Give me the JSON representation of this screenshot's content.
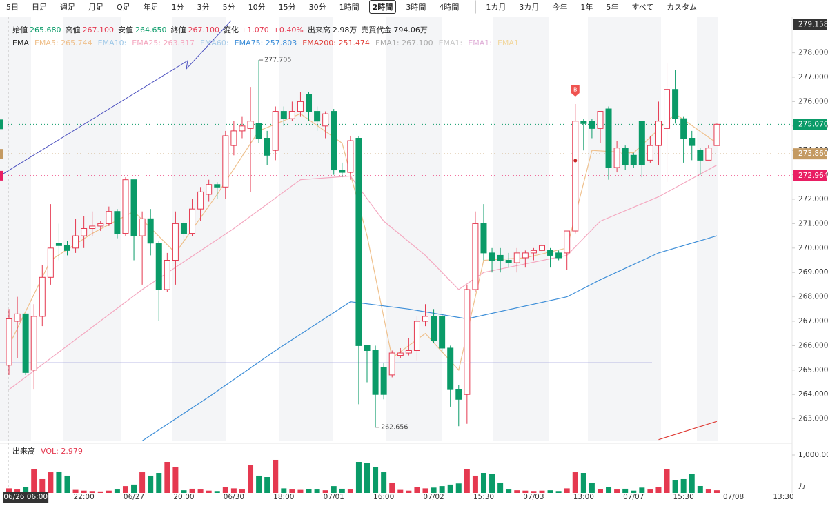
{
  "toolbar": [
    "5日",
    "日足",
    "週足",
    "月足",
    "Q足",
    "年足",
    "1分",
    "3分",
    "5分",
    "10分",
    "15分",
    "30分",
    "1時間",
    "2時間",
    "3時間",
    "4時間",
    "1カ月",
    "3カ月",
    "今年",
    "1年",
    "5年",
    "すべて",
    "カスタム"
  ],
  "toolbar_selected": "2時間",
  "ohlc_info": [
    {
      "label": "始値",
      "value": "265.680",
      "color": "#0a9b68"
    },
    {
      "label": "高値",
      "value": "267.100",
      "color": "#e53950"
    },
    {
      "label": "安値",
      "value": "264.650",
      "color": "#0a9b68"
    },
    {
      "label": "終値",
      "value": "267.100",
      "color": "#e53950"
    },
    {
      "label": "変化",
      "value": "+1.070",
      "color": "#e53950"
    },
    {
      "label": "",
      "value": "+0.40%",
      "color": "#e53950"
    },
    {
      "label": "出来高",
      "value": "2.98万",
      "color": "#222"
    },
    {
      "label": "売買代金",
      "value": "794.06万",
      "color": "#222"
    }
  ],
  "chart_data": {
    "type": "candlestick",
    "ema_title": "EMA",
    "ema": [
      {
        "text": "EMA5: 265.744",
        "color": "#efc08c",
        "x": [
          0,
          5,
          10,
          15,
          20,
          25,
          30,
          35,
          40,
          43,
          46,
          50,
          54,
          57,
          62,
          67,
          70,
          75,
          80,
          85
        ],
        "values": [
          266,
          269.5,
          270.6,
          271.5,
          269.8,
          272.2,
          274.8,
          275.5,
          274.3,
          270.5,
          265.5,
          266.5,
          265,
          269.5,
          269.6,
          270,
          274,
          273.9,
          275.5,
          274.3
        ]
      },
      {
        "text": "EMA10:",
        "color": "#9ec8e8"
      },
      {
        "text": "EMA25: 263.317",
        "color": "#f4a8c0",
        "x": [
          0,
          16,
          27,
          35,
          41,
          45,
          50,
          54,
          57,
          67,
          71,
          78,
          85
        ],
        "values": [
          264.2,
          268.3,
          270.8,
          272.8,
          272.95,
          271.1,
          269.7,
          268.3,
          269,
          269.7,
          271.1,
          272.1,
          273.4
        ]
      },
      {
        "text": "EMA60:",
        "color": "#a8cce8"
      },
      {
        "text": "EMA75: 257.803",
        "color": "#3d8ed8",
        "x": [
          16,
          24,
          32,
          41,
          48,
          55,
          67,
          71,
          78,
          85
        ],
        "values": [
          262.1,
          263.9,
          265.8,
          267.8,
          267.5,
          267.1,
          268,
          268.7,
          269.8,
          270.5
        ]
      },
      {
        "text": "EMA200: 251.474",
        "color": "#e0403a",
        "x": [
          78,
          85
        ],
        "values": [
          262.15,
          262.9
        ]
      },
      {
        "text": "EMA1: 267.100",
        "color": "#aaaaaa"
      },
      {
        "text": "EMA1:",
        "color": "#c8c8c8"
      },
      {
        "text": "EMA1:",
        "color": "#e0b0d8"
      },
      {
        "text": "EMA1",
        "color": "#f2d8a0"
      }
    ],
    "up_color": "#e53950",
    "down_color": "#0a9b68",
    "categories": [
      null,
      null,
      "06/26 06:00",
      null,
      null,
      null,
      null,
      null,
      null,
      "22:00",
      null,
      null,
      null,
      null,
      null,
      "06/27",
      null,
      null,
      null,
      null,
      null,
      "20:00",
      null,
      null,
      null,
      null,
      null,
      "06/30",
      null,
      null,
      null,
      null,
      null,
      "18:00",
      null,
      null,
      null,
      null,
      null,
      "07/01",
      null,
      null,
      null,
      null,
      null,
      "16:00",
      null,
      null,
      null,
      null,
      null,
      "07/02",
      null,
      null,
      null,
      null,
      null,
      "15:30",
      null,
      null,
      null,
      null,
      null,
      "07/03",
      null,
      null,
      null,
      null,
      null,
      "13:00",
      null,
      null,
      null,
      null,
      null,
      "07/07",
      null,
      null,
      null,
      null,
      null,
      "15:30",
      null,
      null,
      null,
      null,
      null,
      "07/08",
      null,
      null,
      null,
      null,
      null,
      "13:30"
    ],
    "ohlc": [
      [
        265.2,
        267.5,
        264.8,
        267.1
      ],
      [
        267.0,
        268.0,
        265.5,
        267.3
      ],
      [
        267.3,
        267.3,
        264.8,
        264.9
      ],
      [
        265.0,
        267.7,
        264.2,
        267.2
      ],
      [
        267.2,
        269.3,
        266.8,
        268.8
      ],
      [
        268.8,
        271.8,
        268.5,
        270.0
      ],
      [
        270.2,
        271.0,
        269.5,
        270.1
      ],
      [
        270.1,
        270.3,
        269.7,
        269.9
      ],
      [
        270.0,
        271.2,
        269.8,
        270.5
      ],
      [
        270.5,
        271.3,
        270.0,
        270.8
      ],
      [
        270.8,
        271.5,
        270.5,
        270.9
      ],
      [
        270.9,
        271.1,
        270.7,
        271.0
      ],
      [
        271.0,
        271.7,
        270.9,
        271.5
      ],
      [
        271.5,
        271.6,
        270.4,
        270.6
      ],
      [
        270.6,
        272.9,
        270.5,
        272.8
      ],
      [
        272.8,
        272.8,
        269.5,
        270.5
      ],
      [
        270.5,
        271.5,
        268.5,
        271.2
      ],
      [
        271.2,
        271.6,
        269.7,
        270.2
      ],
      [
        270.2,
        270.3,
        267.0,
        268.3
      ],
      [
        268.3,
        269.8,
        268.2,
        269.5
      ],
      [
        269.5,
        271.5,
        268.5,
        271.0
      ],
      [
        271.0,
        271.1,
        270.2,
        270.6
      ],
      [
        270.6,
        272.0,
        270.5,
        271.6
      ],
      [
        271.6,
        272.5,
        271.1,
        272.3
      ],
      [
        272.2,
        272.8,
        271.9,
        272.6
      ],
      [
        272.6,
        272.7,
        272.0,
        272.5
      ],
      [
        272.5,
        274.8,
        272.0,
        274.6
      ],
      [
        274.2,
        275.2,
        273.8,
        274.8
      ],
      [
        274.8,
        275.4,
        274.5,
        275.0
      ],
      [
        274.9,
        276.6,
        272.3,
        275.2
      ],
      [
        275.1,
        277.705,
        274.3,
        274.5
      ],
      [
        274.5,
        274.8,
        273.4,
        273.8
      ],
      [
        274.0,
        275.8,
        273.6,
        275.6
      ],
      [
        275.6,
        275.8,
        275.0,
        275.3
      ],
      [
        275.3,
        276.0,
        275.2,
        275.6
      ],
      [
        275.6,
        276.4,
        275.4,
        276.0
      ],
      [
        276.3,
        276.4,
        275.2,
        275.6
      ],
      [
        275.6,
        275.8,
        274.8,
        275.2
      ],
      [
        275.0,
        275.6,
        274.5,
        275.5
      ],
      [
        275.6,
        275.7,
        273.0,
        273.2
      ],
      [
        273.2,
        273.5,
        272.9,
        273.1
      ],
      [
        273.1,
        274.6,
        272.8,
        274.4
      ],
      [
        274.5,
        274.6,
        263.6,
        266.0
      ],
      [
        266.0,
        266.0,
        264.5,
        265.8
      ],
      [
        265.8,
        266.0,
        262.656,
        264.0
      ],
      [
        265.1,
        265.3,
        263.8,
        264.0
      ],
      [
        264.8,
        265.8,
        264.7,
        265.7
      ],
      [
        265.6,
        265.9,
        265.5,
        265.7
      ],
      [
        265.7,
        266.3,
        265.6,
        265.8
      ],
      [
        265.8,
        267.2,
        265.4,
        267.0
      ],
      [
        267.0,
        267.7,
        266.8,
        267.2
      ],
      [
        267.2,
        267.5,
        266.1,
        266.2
      ],
      [
        267.2,
        267.3,
        265.7,
        265.9
      ],
      [
        265.9,
        266.0,
        263.5,
        264.2
      ],
      [
        264.2,
        264.4,
        262.7,
        263.8
      ],
      [
        264.0,
        268.5,
        262.8,
        268.3
      ],
      [
        268.3,
        271.5,
        268.2,
        271.0
      ],
      [
        271.0,
        271.8,
        269.5,
        269.8
      ],
      [
        269.8,
        270.0,
        269.0,
        269.5
      ],
      [
        269.7,
        270.0,
        269.0,
        269.5
      ],
      [
        269.5,
        269.8,
        269.2,
        269.4
      ],
      [
        269.4,
        270.0,
        269.0,
        269.8
      ],
      [
        269.6,
        269.9,
        269.2,
        269.8
      ],
      [
        269.8,
        270.0,
        269.5,
        269.9
      ],
      [
        269.9,
        270.2,
        269.8,
        270.1
      ],
      [
        269.9,
        270.0,
        269.2,
        269.7
      ],
      [
        269.8,
        269.9,
        269.5,
        269.6
      ],
      [
        269.8,
        270.7,
        269.1,
        270.7
      ],
      [
        270.7,
        275.9,
        270.6,
        275.2
      ],
      [
        275.2,
        275.3,
        274.0,
        275.1
      ],
      [
        275.2,
        275.3,
        274.5,
        274.9
      ],
      [
        274.9,
        275.6,
        274.3,
        275.6
      ],
      [
        275.7,
        275.8,
        272.8,
        273.3
      ],
      [
        273.3,
        274.4,
        273.1,
        274.1
      ],
      [
        274.1,
        274.2,
        273.2,
        273.4
      ],
      [
        273.8,
        273.9,
        273.3,
        273.4
      ],
      [
        275.2,
        275.2,
        272.9,
        273.4
      ],
      [
        273.6,
        274.6,
        273.5,
        274.2
      ],
      [
        274.2,
        276.0,
        273.4,
        275.2
      ],
      [
        274.9,
        277.6,
        272.7,
        276.5
      ],
      [
        276.5,
        277.3,
        275.1,
        275.3
      ],
      [
        275.3,
        275.4,
        273.5,
        274.5
      ],
      [
        274.5,
        274.8,
        273.6,
        274.2
      ],
      [
        274.0,
        274.1,
        273.0,
        273.6
      ],
      [
        273.6,
        274.2,
        273.6,
        274.1
      ],
      [
        274.2,
        275.1,
        274.2,
        275.07
      ],
      null,
      null,
      null,
      null,
      null,
      null,
      null,
      null
    ],
    "ylim": [
      262.085,
      279.458
    ],
    "yticks": [
      {
        "value": 263,
        "label": "263.000"
      },
      {
        "value": 264,
        "label": "264.000"
      },
      {
        "value": 265,
        "label": "265.000"
      },
      {
        "value": 266,
        "label": "266.000"
      },
      {
        "value": 267,
        "label": "267.000"
      },
      {
        "value": 268,
        "label": "268.000"
      },
      {
        "value": 269,
        "label": "269.000"
      },
      {
        "value": 270,
        "label": "270.000"
      },
      {
        "value": 271,
        "label": "271.000"
      },
      {
        "value": 272,
        "label": "272.000"
      },
      {
        "value": 273,
        "label": "273.000"
      },
      {
        "value": 274,
        "label": "274.000"
      },
      {
        "value": 275,
        "label": "275.000"
      },
      {
        "value": 276,
        "label": "276.000"
      },
      {
        "value": 277,
        "label": "277.000"
      },
      {
        "value": 278,
        "label": "278.000"
      }
    ],
    "crosshair": {
      "value": 279.158,
      "label": "279.158"
    },
    "price_lines": [
      {
        "value": 275.07,
        "label": "275.070",
        "color": "#0a9b68"
      },
      {
        "value": 273.86,
        "label": "273.860",
        "color": "#c49a62"
      },
      {
        "value": 272.964,
        "label": "272.964",
        "color": "#e91e63"
      }
    ],
    "high_label": {
      "index": 30,
      "value": 277.705,
      "label": "277.705"
    },
    "low_label": {
      "index": 44,
      "value": 262.656,
      "label": "262.656"
    },
    "signal": {
      "index": 68,
      "label": "B"
    },
    "hline": {
      "value": 265.3,
      "color": "#7b7fd0"
    },
    "volume_title": "出来高",
    "volume_label": "VOL: 2.979",
    "volume": [
      120,
      90,
      150,
      636,
      364,
      545,
      564,
      455,
      80,
      60,
      50,
      40,
      60,
      90,
      180,
      220,
      545,
      455,
      527,
      818,
      691,
      70,
      110,
      90,
      60,
      50,
      160,
      120,
      90,
      727,
      455,
      418,
      873,
      120,
      90,
      80,
      100,
      90,
      70,
      180,
      110,
      90,
      818,
      782,
      673,
      545,
      273,
      80,
      60,
      150,
      120,
      140,
      180,
      220,
      250,
      636,
      455,
      527,
      491,
      273,
      90,
      70,
      60,
      50,
      60,
      70,
      50,
      120,
      545,
      527,
      273,
      100,
      160,
      90,
      110,
      60,
      140,
      90,
      160,
      636,
      327,
      364,
      491,
      182,
      90,
      70,
      null,
      null,
      null,
      null,
      null,
      null,
      null,
      null
    ],
    "vol_ylim": [
      0,
      1300
    ],
    "vol_yticks": [
      {
        "value": 1000,
        "label": "1,000.00"
      }
    ],
    "vol_unit": "万"
  }
}
